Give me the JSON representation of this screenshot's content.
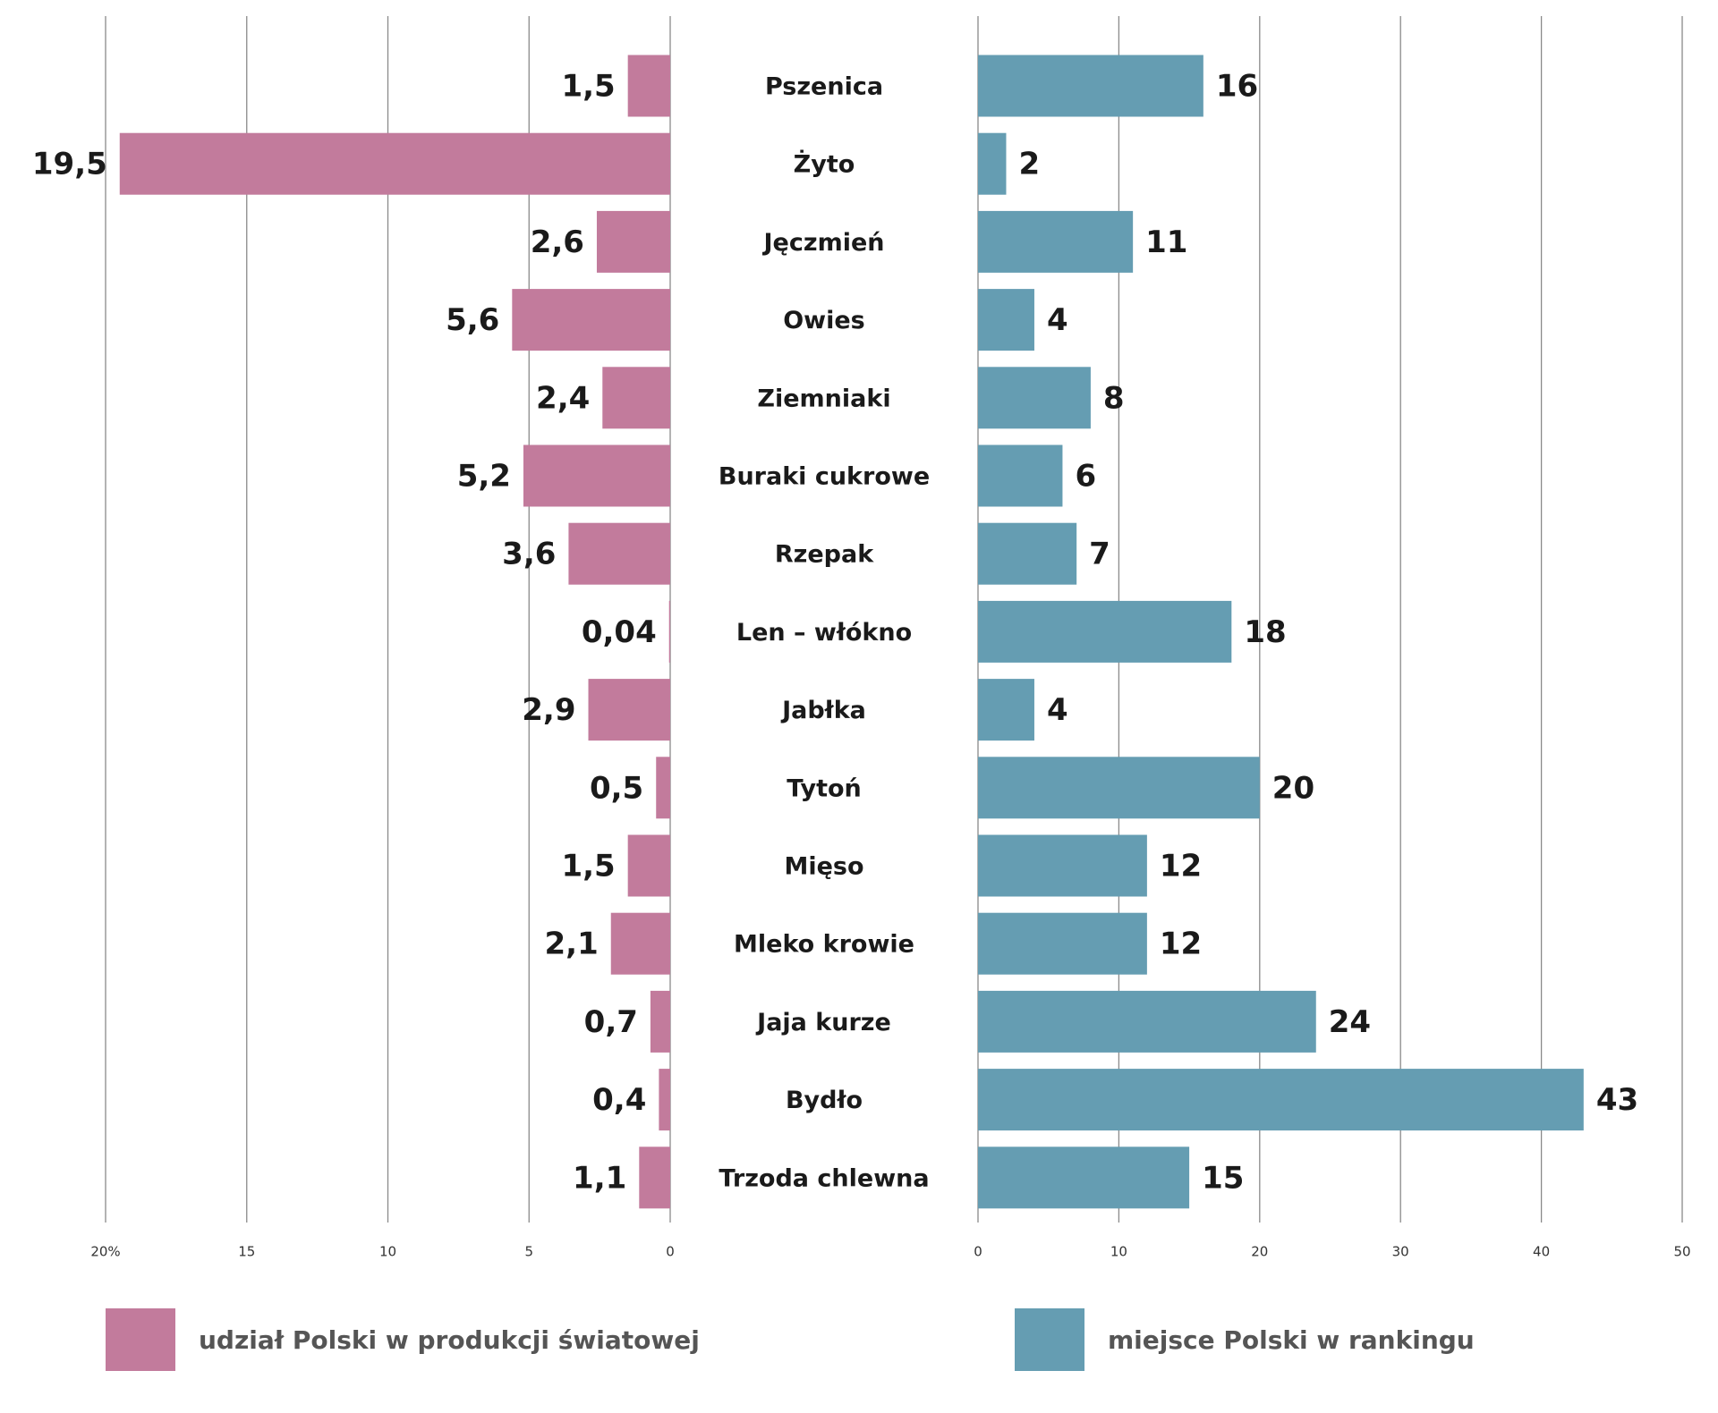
{
  "chart_data": {
    "type": "butterfly",
    "categories": [
      "Pszenica",
      "Żyto",
      "Jęczmień",
      "Owies",
      "Ziemniaki",
      "Buraki cukrowe",
      "Rzepak",
      "Len – włókno",
      "Jabłka",
      "Tytoń",
      "Mięso",
      "Mleko krowie",
      "Jaja kurze",
      "Bydło",
      "Trzoda chlewna"
    ],
    "series": [
      {
        "name": "udział Polski w produkcji światowej",
        "color": "#c27b9c",
        "values": [
          1.5,
          19.5,
          2.6,
          5.6,
          2.4,
          5.2,
          3.6,
          0.04,
          2.9,
          0.5,
          1.5,
          2.1,
          0.7,
          0.4,
          1.1
        ],
        "value_labels": [
          "1,5",
          "19,5",
          "2,6",
          "5,6",
          "2,4",
          "5,2",
          "3,6",
          "0,04",
          "2,9",
          "0,5",
          "1,5",
          "2,1",
          "0,7",
          "0,4",
          "1,1"
        ],
        "xlim": [
          0,
          20
        ],
        "xticks": [
          0,
          5,
          10,
          15,
          {
            "value": 20,
            "label": "20%"
          }
        ]
      },
      {
        "name": "miejsce Polski w rankingu",
        "color": "#659db2",
        "values": [
          16,
          2,
          11,
          4,
          8,
          6,
          7,
          18,
          4,
          20,
          12,
          12,
          24,
          43,
          15
        ],
        "xlim": [
          0,
          50
        ],
        "xticks": [
          0,
          10,
          20,
          30,
          40,
          50
        ]
      }
    ],
    "grid": true
  }
}
